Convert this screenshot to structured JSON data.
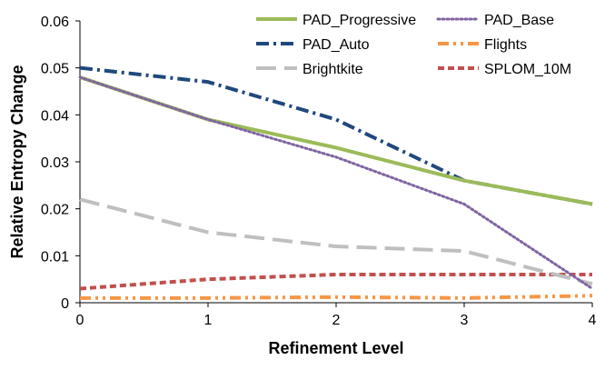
{
  "chart_data": {
    "type": "line",
    "title": "",
    "xlabel": "Refinement Level",
    "ylabel": "Relative Entropy Change",
    "x": [
      0,
      1,
      2,
      3,
      4
    ],
    "xticks": [
      "0",
      "1",
      "2",
      "3",
      "4"
    ],
    "yticks": [
      "0",
      "0.01",
      "0.02",
      "0.03",
      "0.04",
      "0.05",
      "0.06"
    ],
    "ylim": [
      0,
      0.06
    ],
    "xlim": [
      0,
      4
    ],
    "grid": false,
    "legend_position": "top-right",
    "series": [
      {
        "name": "PAD_Progressive",
        "values": [
          0.048,
          0.039,
          0.033,
          0.026,
          0.021
        ],
        "color": "#9BBB59",
        "style": "solid"
      },
      {
        "name": "PAD_Base",
        "values": [
          0.048,
          0.039,
          0.031,
          0.021,
          0.003
        ],
        "color": "#8064A2",
        "style": "dotted"
      },
      {
        "name": "PAD_Auto",
        "values": [
          0.05,
          0.047,
          0.039,
          0.026,
          0.021
        ],
        "color": "#1F497D",
        "style": "dashdot"
      },
      {
        "name": "Flights",
        "values": [
          0.001,
          0.001,
          0.0012,
          0.001,
          0.0015
        ],
        "color": "#F79646",
        "style": "dashdotdot"
      },
      {
        "name": "Brightkite",
        "values": [
          0.022,
          0.015,
          0.012,
          0.011,
          0.004
        ],
        "color": "#BFBFBF",
        "style": "longdash"
      },
      {
        "name": "SPLOM_10M",
        "values": [
          0.003,
          0.005,
          0.006,
          0.006,
          0.006
        ],
        "color": "#C0504D",
        "style": "dash"
      }
    ]
  }
}
